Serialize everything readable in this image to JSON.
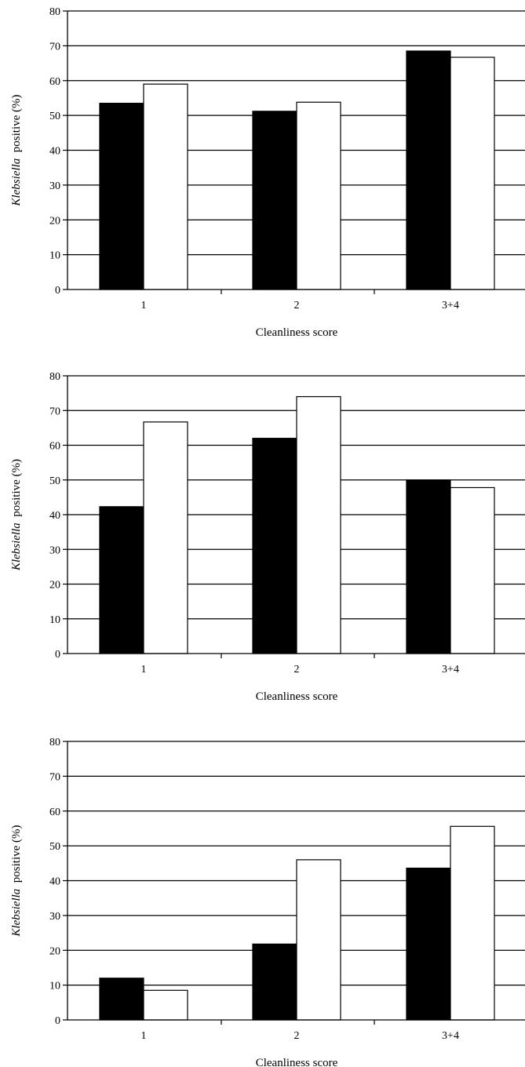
{
  "chart_data": [
    {
      "type": "bar",
      "categories": [
        "1",
        "2",
        "3+4"
      ],
      "series": [
        {
          "values": [
            53.5,
            51.2,
            68.5
          ],
          "color": "#000000"
        },
        {
          "values": [
            59.0,
            53.8,
            66.7
          ],
          "color": "#ffffff"
        }
      ],
      "xlabel": "Cleanliness score",
      "ylabel_italic": "Klebsiella",
      "ylabel_rest": "positive (%)",
      "ylim": [
        0,
        80
      ],
      "yticks": [
        0,
        10,
        20,
        30,
        40,
        50,
        60,
        70,
        80
      ],
      "grid": true
    },
    {
      "type": "bar",
      "categories": [
        "1",
        "2",
        "3+4"
      ],
      "series": [
        {
          "values": [
            42.3,
            62.0,
            50.0
          ],
          "color": "#000000"
        },
        {
          "values": [
            66.7,
            74.0,
            47.8
          ],
          "color": "#ffffff"
        }
      ],
      "xlabel": "Cleanliness score",
      "ylabel_italic": "Klebsiella",
      "ylabel_rest": "positive (%)",
      "ylim": [
        0,
        80
      ],
      "yticks": [
        0,
        10,
        20,
        30,
        40,
        50,
        60,
        70,
        80
      ],
      "grid": true
    },
    {
      "type": "bar",
      "categories": [
        "1",
        "2",
        "3+4"
      ],
      "series": [
        {
          "values": [
            12.0,
            21.8,
            43.6
          ],
          "color": "#000000"
        },
        {
          "values": [
            8.5,
            46.0,
            55.6
          ],
          "color": "#ffffff"
        }
      ],
      "xlabel": "Cleanliness score",
      "ylabel_italic": "Klebsiella",
      "ylabel_rest": "positive (%)",
      "ylim": [
        0,
        80
      ],
      "yticks": [
        0,
        10,
        20,
        30,
        40,
        50,
        60,
        70,
        80
      ],
      "grid": true
    }
  ]
}
